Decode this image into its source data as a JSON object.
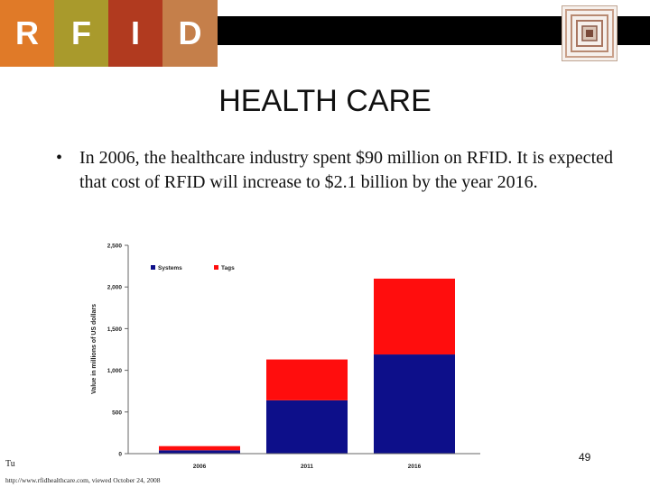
{
  "header": {
    "logo_letters": [
      "R",
      "F",
      "I",
      "D"
    ],
    "colors": {
      "bar": "#000000",
      "logo": [
        "#e07a28",
        "#a99a2c",
        "#b13a1f",
        "#c57f4a"
      ]
    },
    "icon": "rfid-chip-icon"
  },
  "title": "HEALTH CARE",
  "bullet": {
    "marker": "•",
    "text": "In 2006, the healthcare industry spent $90 million on RFID. It is expected that cost of RFID will increase to $2.1 billion by the year 2016."
  },
  "chart_data": {
    "type": "bar",
    "stacked": true,
    "categories": [
      "2006",
      "2011",
      "2016"
    ],
    "series": [
      {
        "name": "Systems",
        "values": [
          40,
          640,
          1190
        ],
        "color": "#0d0f8a"
      },
      {
        "name": "Tags",
        "values": [
          50,
          490,
          910
        ],
        "color": "#ff0d0d"
      }
    ],
    "ylabel": "Value in millions of US dollars",
    "xlabel": "",
    "ylim": [
      0,
      2500
    ],
    "yticks": [
      "0",
      "500",
      "1,000",
      "1,500",
      "2,000",
      "2,500"
    ],
    "legend_position": "top-left",
    "grid": false
  },
  "footer": {
    "left": "Tu",
    "url": "http://www.rfidhealthcare.com, viewed October 24, 2008",
    "page": "49"
  }
}
